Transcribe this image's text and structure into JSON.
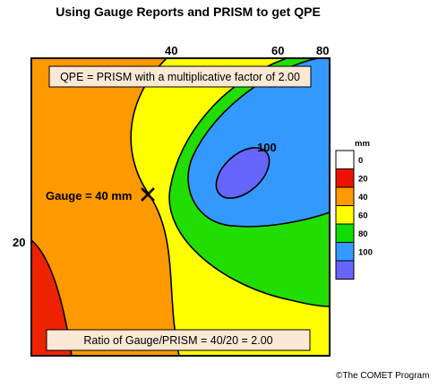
{
  "title": "Using Gauge Reports and PRISM to get QPE",
  "contour_labels": {
    "c40_top": "40",
    "c60_top": "60",
    "c80_top": "80",
    "c20_left": "20",
    "c100_inner": "100"
  },
  "gauge": {
    "label": "Gauge = 40 mm",
    "value_mm": 40
  },
  "qpe_box": "QPE = PRISM with a multiplicative factor of 2.00",
  "ratio_box": "Ratio of Gauge/PRISM = 40/20 = 2.00",
  "legend": {
    "unit": "mm",
    "items": [
      {
        "label": "0",
        "color": "#ffffff"
      },
      {
        "label": "20",
        "color": "#ee1100"
      },
      {
        "label": "40",
        "color": "#ff9900"
      },
      {
        "label": "60",
        "color": "#ffff00"
      },
      {
        "label": "80",
        "color": "#11dd00"
      },
      {
        "label": "100",
        "color": "#3399ff"
      },
      {
        "label": "",
        "color": "#6666ff"
      }
    ]
  },
  "colors": {
    "red": "#ee2200",
    "orange": "#ff9900",
    "yellow": "#ffff00",
    "green": "#22dd00",
    "blue": "#3399ff",
    "purple": "#6666ff"
  },
  "copyright": "©The COMET Program"
}
